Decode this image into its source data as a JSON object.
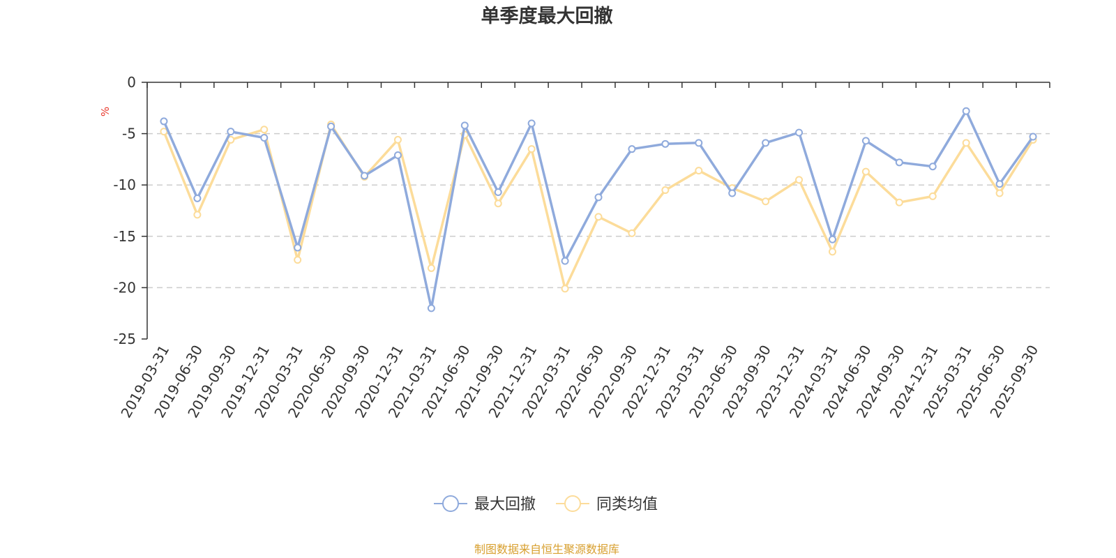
{
  "chart_data": {
    "type": "line",
    "title": "单季度最大回撤",
    "y_unit": "%",
    "ylim": [
      -25,
      0
    ],
    "y_ticks": [
      0,
      -5,
      -10,
      -15,
      -20,
      -25
    ],
    "y_tick_labels": [
      "0",
      "-5",
      "-10",
      "-15",
      "-20",
      "-25"
    ],
    "grid": "horizontal dashed",
    "legend_position": "bottom-center",
    "categories": [
      "2019-03-31",
      "2019-06-30",
      "2019-09-30",
      "2019-12-31",
      "2020-03-31",
      "2020-06-30",
      "2020-09-30",
      "2020-12-31",
      "2021-03-31",
      "2021-06-30",
      "2021-09-30",
      "2021-12-31",
      "2022-03-31",
      "2022-06-30",
      "2022-09-30",
      "2022-12-31",
      "2023-03-31",
      "2023-06-30",
      "2023-09-30",
      "2023-12-31",
      "2024-03-31",
      "2024-06-30",
      "2024-09-30",
      "2024-12-31",
      "2025-03-31",
      "2025-06-30",
      "2025-09-30"
    ],
    "series": [
      {
        "name": "最大回撤",
        "color": "#8faadc",
        "values": [
          -3.8,
          -11.3,
          -4.8,
          -5.4,
          -16.1,
          -4.3,
          -9.1,
          -7.1,
          -22.0,
          -4.2,
          -10.7,
          -4.0,
          -17.4,
          -11.2,
          -6.5,
          -6.0,
          -5.9,
          -10.8,
          -5.9,
          -4.9,
          -15.3,
          -5.7,
          -7.8,
          -8.2,
          -2.8,
          -9.9,
          -5.3
        ]
      },
      {
        "name": "同类均值",
        "color": "#fcdc9a",
        "values": [
          -4.8,
          -12.9,
          -5.6,
          -4.6,
          -17.3,
          -4.1,
          -9.2,
          -5.6,
          -18.1,
          -5.1,
          -11.8,
          -6.5,
          -20.1,
          -13.1,
          -14.7,
          -10.5,
          -8.6,
          -10.3,
          -11.6,
          -9.5,
          -16.5,
          -8.7,
          -11.7,
          -11.1,
          -5.9,
          -10.8,
          -5.6
        ]
      }
    ]
  },
  "footer": {
    "source": "制图数据来自恒生聚源数据库"
  }
}
